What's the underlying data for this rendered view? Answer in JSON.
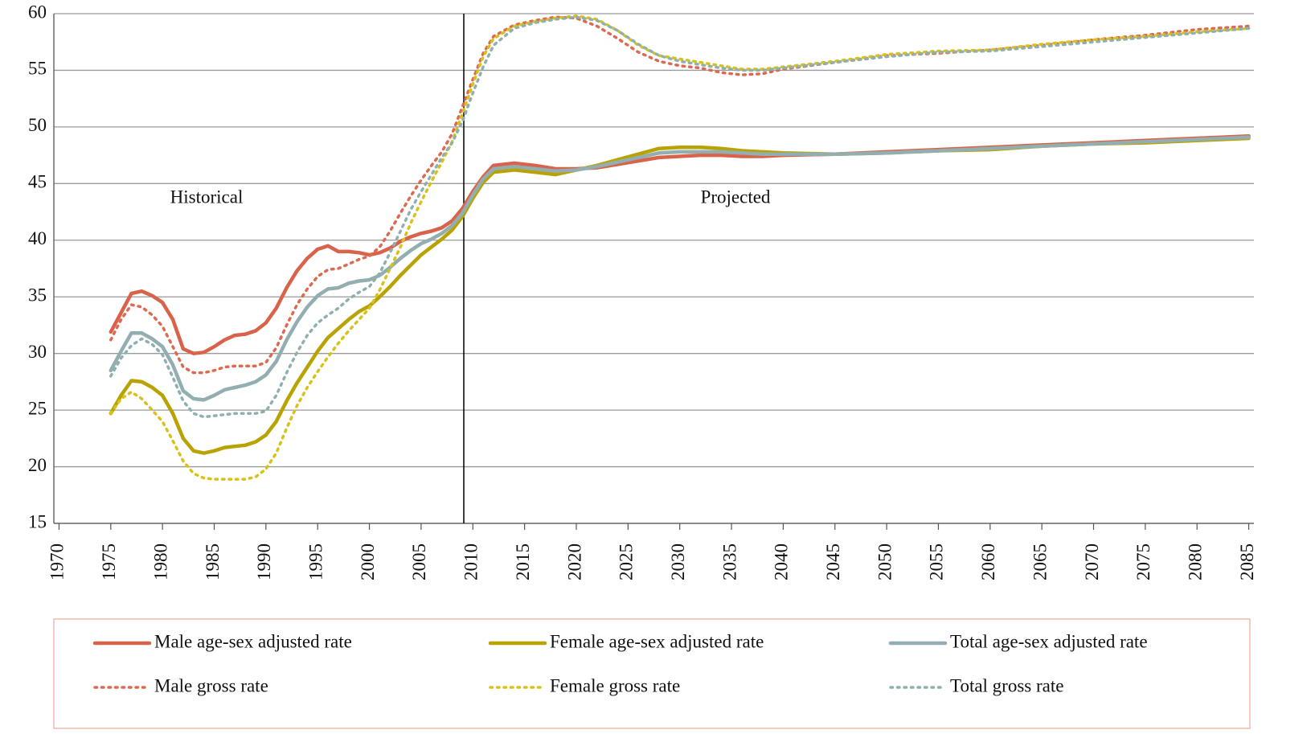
{
  "chart_data": {
    "type": "line",
    "annotations": [
      "Historical",
      "Projected"
    ],
    "x": [
      1975,
      1976,
      1977,
      1978,
      1979,
      1980,
      1981,
      1982,
      1983,
      1984,
      1985,
      1986,
      1987,
      1988,
      1989,
      1990,
      1991,
      1992,
      1993,
      1994,
      1995,
      1996,
      1997,
      1998,
      1999,
      2000,
      2001,
      2002,
      2003,
      2004,
      2005,
      2006,
      2007,
      2008,
      2009,
      2010,
      2011,
      2012,
      2014,
      2016,
      2018,
      2020,
      2022,
      2024,
      2026,
      2028,
      2030,
      2032,
      2034,
      2036,
      2038,
      2040,
      2045,
      2050,
      2055,
      2060,
      2065,
      2070,
      2075,
      2080,
      2085
    ],
    "series": [
      {
        "name": "Male age-sex adjusted rate",
        "color": "#d9634a",
        "style": "solid",
        "values": [
          31.9,
          33.6,
          35.3,
          35.5,
          35.1,
          34.5,
          33.0,
          30.4,
          30.0,
          30.1,
          30.6,
          31.2,
          31.6,
          31.7,
          32.0,
          32.7,
          34.0,
          35.8,
          37.3,
          38.4,
          39.2,
          39.5,
          39.0,
          39.0,
          38.9,
          38.7,
          38.9,
          39.3,
          39.9,
          40.3,
          40.6,
          40.8,
          41.1,
          41.7,
          42.8,
          44.3,
          45.6,
          46.6,
          46.8,
          46.6,
          46.3,
          46.3,
          46.4,
          46.7,
          47.0,
          47.3,
          47.4,
          47.5,
          47.5,
          47.4,
          47.4,
          47.5,
          47.6,
          47.8,
          48.0,
          48.2,
          48.4,
          48.6,
          48.8,
          49.0,
          49.2
        ]
      },
      {
        "name": "Female age-sex adjusted rate",
        "color": "#b9a304",
        "style": "solid",
        "values": [
          24.7,
          26.3,
          27.6,
          27.5,
          27.0,
          26.3,
          24.7,
          22.5,
          21.4,
          21.2,
          21.4,
          21.7,
          21.8,
          21.9,
          22.2,
          22.8,
          24.0,
          25.8,
          27.4,
          28.8,
          30.2,
          31.4,
          32.2,
          33.0,
          33.7,
          34.2,
          35.0,
          35.9,
          36.9,
          37.8,
          38.7,
          39.4,
          40.1,
          40.9,
          42.1,
          43.7,
          45.1,
          46.0,
          46.2,
          46.0,
          45.8,
          46.2,
          46.6,
          47.1,
          47.6,
          48.1,
          48.2,
          48.2,
          48.1,
          47.9,
          47.8,
          47.7,
          47.6,
          47.7,
          47.9,
          48.0,
          48.3,
          48.5,
          48.6,
          48.8,
          49.0
        ]
      },
      {
        "name": "Total age-sex adjusted rate",
        "color": "#93aeb0",
        "style": "solid",
        "values": [
          28.5,
          30.2,
          31.8,
          31.8,
          31.3,
          30.6,
          29.0,
          26.7,
          26.0,
          25.9,
          26.3,
          26.8,
          27.0,
          27.2,
          27.5,
          28.1,
          29.3,
          31.2,
          32.8,
          34.1,
          35.1,
          35.7,
          35.8,
          36.2,
          36.4,
          36.5,
          36.9,
          37.6,
          38.4,
          39.1,
          39.7,
          40.1,
          40.6,
          41.3,
          42.4,
          44.0,
          45.4,
          46.3,
          46.5,
          46.3,
          46.1,
          46.2,
          46.5,
          46.9,
          47.3,
          47.7,
          47.8,
          47.8,
          47.8,
          47.7,
          47.6,
          47.6,
          47.6,
          47.7,
          47.9,
          48.1,
          48.3,
          48.5,
          48.7,
          48.9,
          49.1
        ]
      },
      {
        "name": "Male gross rate",
        "color": "#dd6a50",
        "style": "dotted",
        "values": [
          31.2,
          33.0,
          34.3,
          34.1,
          33.4,
          32.4,
          30.6,
          28.8,
          28.3,
          28.3,
          28.5,
          28.8,
          28.9,
          28.9,
          28.9,
          29.2,
          30.5,
          32.5,
          34.3,
          35.7,
          36.8,
          37.4,
          37.5,
          37.9,
          38.3,
          38.6,
          39.4,
          40.8,
          42.4,
          43.9,
          45.3,
          46.6,
          47.8,
          49.4,
          51.8,
          54.2,
          56.5,
          58.0,
          59.0,
          59.4,
          59.7,
          59.6,
          58.9,
          57.8,
          56.6,
          55.8,
          55.4,
          55.2,
          54.8,
          54.6,
          54.7,
          55.1,
          55.7,
          56.3,
          56.5,
          56.8,
          57.2,
          57.7,
          58.1,
          58.6,
          58.9
        ]
      },
      {
        "name": "Female gross rate",
        "color": "#d8c21a",
        "style": "dotted",
        "values": [
          24.7,
          26.0,
          26.6,
          26.0,
          25.0,
          24.0,
          22.3,
          20.5,
          19.4,
          19.0,
          18.9,
          18.9,
          18.9,
          18.9,
          19.1,
          19.8,
          21.2,
          23.4,
          25.4,
          27.0,
          28.4,
          29.7,
          30.9,
          32.0,
          33.0,
          34.0,
          35.6,
          37.5,
          39.4,
          41.5,
          43.4,
          45.2,
          46.9,
          48.7,
          51.2,
          53.8,
          56.2,
          57.8,
          58.9,
          59.3,
          59.6,
          59.8,
          59.5,
          58.5,
          57.2,
          56.3,
          56.0,
          55.7,
          55.4,
          55.1,
          55.1,
          55.3,
          55.8,
          56.4,
          56.7,
          56.8,
          57.3,
          57.7,
          58.0,
          58.4,
          58.7
        ]
      },
      {
        "name": "Total gross rate",
        "color": "#8fb0b0",
        "style": "dotted",
        "values": [
          28.0,
          29.6,
          30.7,
          31.3,
          30.8,
          29.9,
          27.9,
          25.8,
          24.7,
          24.4,
          24.5,
          24.6,
          24.7,
          24.7,
          24.7,
          24.9,
          26.3,
          28.3,
          30.1,
          31.6,
          32.7,
          33.4,
          34.0,
          34.8,
          35.4,
          35.9,
          37.1,
          38.9,
          40.8,
          42.7,
          44.3,
          45.8,
          47.3,
          48.6,
          50.5,
          53.0,
          55.3,
          57.2,
          58.7,
          59.2,
          59.5,
          59.7,
          59.4,
          58.5,
          57.3,
          56.3,
          55.8,
          55.5,
          55.2,
          55.0,
          55.0,
          55.2,
          55.7,
          56.2,
          56.6,
          56.7,
          57.1,
          57.5,
          57.9,
          58.3,
          58.7
        ]
      }
    ],
    "xlim": [
      1969.5,
      2085.5
    ],
    "xticks": [
      1970,
      1975,
      1980,
      1985,
      1990,
      1995,
      2000,
      2005,
      2010,
      2015,
      2020,
      2025,
      2030,
      2035,
      2040,
      2045,
      2050,
      2055,
      2060,
      2065,
      2070,
      2075,
      2080,
      2085
    ],
    "ylim": [
      15,
      60
    ],
    "yticks": [
      15,
      20,
      25,
      30,
      35,
      40,
      45,
      50,
      55,
      60
    ],
    "grid": true,
    "legend": "bottom"
  }
}
